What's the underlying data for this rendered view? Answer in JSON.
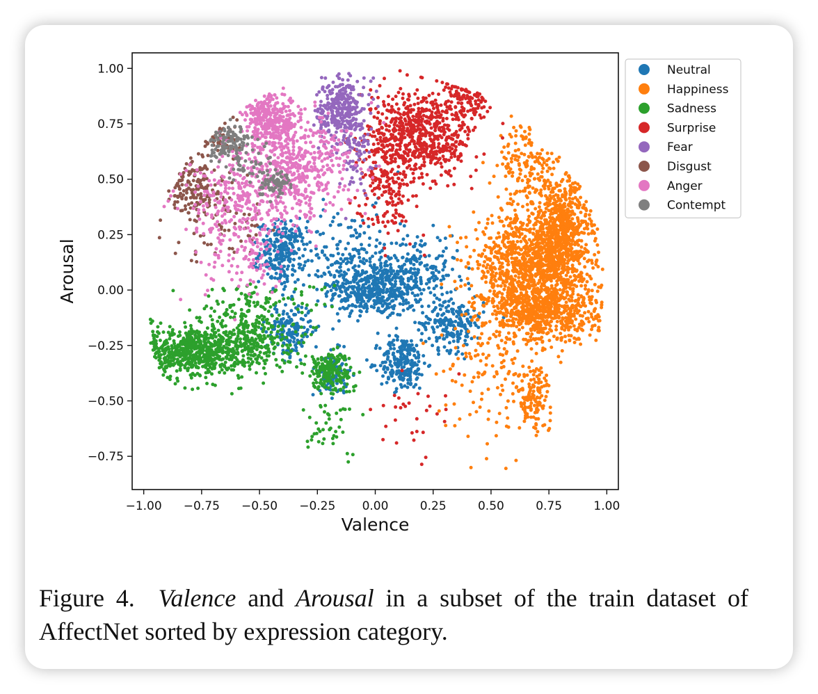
{
  "figure": {
    "caption_label": "Figure 4.",
    "caption_term1": "Valence",
    "caption_and": "and",
    "caption_term2": "Arousal",
    "caption_rest1": "in a subset of the train dataset of",
    "caption_rest2": "AffectNet sorted by expression category."
  },
  "chart_data": {
    "type": "scatter",
    "title": "",
    "xlabel": "Valence",
    "ylabel": "Arousal",
    "xlim": [
      -1.05,
      1.05
    ],
    "ylim": [
      -0.9,
      1.07
    ],
    "xticks": [
      -1.0,
      -0.75,
      -0.5,
      -0.25,
      0.0,
      0.25,
      0.5,
      0.75,
      1.0
    ],
    "xtick_labels": [
      "−1.00",
      "−0.75",
      "−0.50",
      "−0.25",
      "0.00",
      "0.25",
      "0.50",
      "0.75",
      "1.00"
    ],
    "yticks": [
      -0.75,
      -0.5,
      -0.25,
      0.0,
      0.25,
      0.5,
      0.75,
      1.0
    ],
    "ytick_labels": [
      "−0.75",
      "−0.50",
      "−0.25",
      "0.00",
      "0.25",
      "0.50",
      "0.75",
      "1.00"
    ],
    "grid": false,
    "legend_position": "upper-right-outside",
    "series": [
      {
        "name": "Neutral",
        "color": "#1f77b4",
        "clusters": [
          {
            "cx": 0.0,
            "cy": 0.0,
            "sx": 0.1,
            "sy": 0.06,
            "n": 420
          },
          {
            "cx": -0.4,
            "cy": 0.17,
            "sx": 0.05,
            "sy": 0.07,
            "n": 260
          },
          {
            "cx": -0.1,
            "cy": 0.12,
            "sx": 0.12,
            "sy": 0.12,
            "n": 220
          },
          {
            "cx": 0.12,
            "cy": -0.33,
            "sx": 0.05,
            "sy": 0.06,
            "n": 230
          },
          {
            "cx": 0.33,
            "cy": -0.15,
            "sx": 0.07,
            "sy": 0.06,
            "n": 200
          },
          {
            "cx": -0.37,
            "cy": -0.18,
            "sx": 0.05,
            "sy": 0.06,
            "n": 160
          },
          {
            "cx": -0.18,
            "cy": -0.38,
            "sx": 0.03,
            "sy": 0.05,
            "n": 100
          },
          {
            "cx": 0.2,
            "cy": 0.1,
            "sx": 0.08,
            "sy": 0.08,
            "n": 150
          }
        ]
      },
      {
        "name": "Happiness",
        "color": "#ff7f0e",
        "clusters": [
          {
            "cx": 0.8,
            "cy": 0.22,
            "sx": 0.07,
            "sy": 0.15,
            "n": 950
          },
          {
            "cx": 0.62,
            "cy": 0.12,
            "sx": 0.1,
            "sy": 0.1,
            "n": 650
          },
          {
            "cx": 0.72,
            "cy": -0.1,
            "sx": 0.12,
            "sy": 0.07,
            "n": 650
          },
          {
            "cx": 0.65,
            "cy": 0.55,
            "sx": 0.06,
            "sy": 0.1,
            "n": 150
          },
          {
            "cx": 0.68,
            "cy": -0.48,
            "sx": 0.04,
            "sy": 0.07,
            "n": 140
          },
          {
            "cx": 0.5,
            "cy": -0.3,
            "sx": 0.1,
            "sy": 0.18,
            "n": 130
          }
        ]
      },
      {
        "name": "Sadness",
        "color": "#2ca02c",
        "clusters": [
          {
            "cx": -0.78,
            "cy": -0.28,
            "sx": 0.1,
            "sy": 0.06,
            "n": 600
          },
          {
            "cx": -0.55,
            "cy": -0.22,
            "sx": 0.1,
            "sy": 0.07,
            "n": 320
          },
          {
            "cx": -0.2,
            "cy": -0.37,
            "sx": 0.05,
            "sy": 0.05,
            "n": 200
          },
          {
            "cx": -0.5,
            "cy": -0.05,
            "sx": 0.15,
            "sy": 0.04,
            "n": 80
          },
          {
            "cx": -0.2,
            "cy": -0.62,
            "sx": 0.07,
            "sy": 0.07,
            "n": 40
          }
        ]
      },
      {
        "name": "Surprise",
        "color": "#d62728",
        "clusters": [
          {
            "cx": 0.2,
            "cy": 0.7,
            "sx": 0.11,
            "sy": 0.1,
            "n": 650
          },
          {
            "cx": 0.05,
            "cy": 0.5,
            "sx": 0.06,
            "sy": 0.12,
            "n": 200
          },
          {
            "cx": 0.4,
            "cy": 0.85,
            "sx": 0.05,
            "sy": 0.05,
            "n": 110
          },
          {
            "cx": 0.2,
            "cy": -0.6,
            "sx": 0.1,
            "sy": 0.08,
            "n": 30
          }
        ]
      },
      {
        "name": "Fear",
        "color": "#9467bd",
        "clusters": [
          {
            "cx": -0.15,
            "cy": 0.82,
            "sx": 0.05,
            "sy": 0.07,
            "n": 300
          },
          {
            "cx": -0.09,
            "cy": 0.65,
            "sx": 0.04,
            "sy": 0.1,
            "n": 100
          }
        ]
      },
      {
        "name": "Disgust",
        "color": "#8c564b",
        "clusters": [
          {
            "cx": -0.78,
            "cy": 0.47,
            "sx": 0.06,
            "sy": 0.07,
            "n": 160
          },
          {
            "cx": -0.66,
            "cy": 0.68,
            "sx": 0.04,
            "sy": 0.04,
            "n": 60
          },
          {
            "cx": -0.65,
            "cy": 0.3,
            "sx": 0.12,
            "sy": 0.08,
            "n": 60
          }
        ]
      },
      {
        "name": "Anger",
        "color": "#e377c2",
        "clusters": [
          {
            "cx": -0.45,
            "cy": 0.77,
            "sx": 0.06,
            "sy": 0.06,
            "n": 320
          },
          {
            "cx": -0.35,
            "cy": 0.55,
            "sx": 0.12,
            "sy": 0.12,
            "n": 520
          },
          {
            "cx": -0.6,
            "cy": 0.4,
            "sx": 0.12,
            "sy": 0.1,
            "n": 220
          },
          {
            "cx": -0.55,
            "cy": 0.15,
            "sx": 0.1,
            "sy": 0.1,
            "n": 120
          }
        ]
      },
      {
        "name": "Contempt",
        "color": "#7f7f7f",
        "clusters": [
          {
            "cx": -0.63,
            "cy": 0.66,
            "sx": 0.04,
            "sy": 0.04,
            "n": 110
          },
          {
            "cx": -0.44,
            "cy": 0.49,
            "sx": 0.04,
            "sy": 0.03,
            "n": 80
          },
          {
            "cx": -0.55,
            "cy": 0.6,
            "sx": 0.06,
            "sy": 0.05,
            "n": 40
          }
        ]
      }
    ]
  }
}
